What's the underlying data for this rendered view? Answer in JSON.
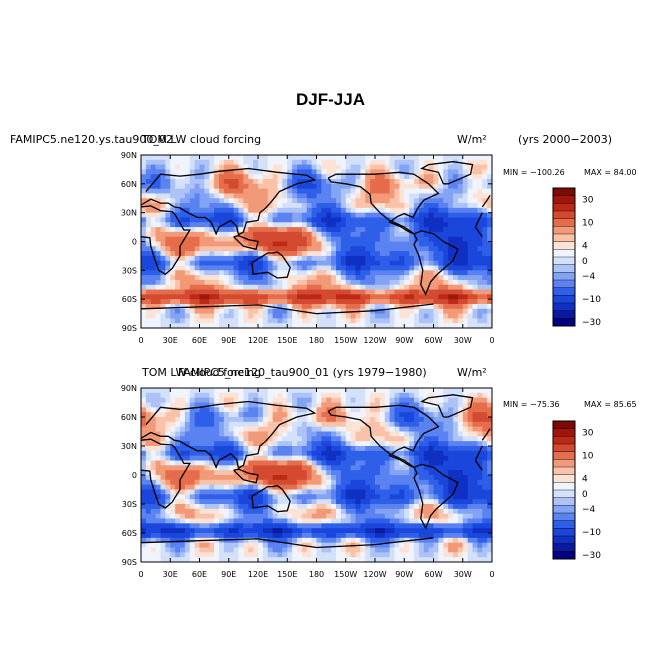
{
  "title": "DJF-JJA",
  "colors": {
    "levels": [
      "#000080",
      "#0a1a9e",
      "#0f30c2",
      "#1a46dc",
      "#2e5fe8",
      "#5a82f0",
      "#83a3f4",
      "#adc3f7",
      "#d4e1fb",
      "#f0f4ff",
      "#fde3d6",
      "#f9c2a9",
      "#f29a78",
      "#e56d4c",
      "#d34a30",
      "#bc2a17",
      "#a1160b",
      "#7d0b05"
    ],
    "land": "#000000"
  },
  "chart_data": [
    {
      "type": "heatmap",
      "left_title": "FAMIPC5.ne120.ys.tau900_02",
      "center_title": "TOM LW cloud forcing",
      "unit": "W/m²",
      "right_title": "(yrs 2000−2003)",
      "min_label": "MIN = −100.26",
      "max_label": "MAX =  84.00",
      "stats": {
        "min": -100.26,
        "max": 84.0
      },
      "x_ticks": [
        "0",
        "30E",
        "60E",
        "90E",
        "120E",
        "150E",
        "180",
        "150W",
        "120W",
        "90W",
        "60W",
        "30W",
        "0"
      ],
      "y_ticks": [
        "90N",
        "60N",
        "30N",
        "0",
        "30S",
        "60S",
        "90S"
      ],
      "colorbar_labels": [
        "30",
        "10",
        "4",
        "0",
        "−4",
        "−10",
        "−30"
      ]
    },
    {
      "type": "heatmap",
      "left_title": "TOM LW cloud forcing",
      "center_title": "FAMIPC5_ne120_tau900_01 (yrs 1979−1980)",
      "unit": "W/m²",
      "right_title": "",
      "min_label": "MIN = −75.36",
      "max_label": "MAX =  85.65",
      "stats": {
        "min": -75.36,
        "max": 85.65
      },
      "x_ticks": [
        "0",
        "30E",
        "60E",
        "90E",
        "120E",
        "150E",
        "180",
        "150W",
        "120W",
        "90W",
        "60W",
        "30W",
        "0"
      ],
      "y_ticks": [
        "90N",
        "60N",
        "30N",
        "0",
        "30S",
        "60S",
        "90S"
      ],
      "colorbar_labels": [
        "30",
        "10",
        "4",
        "0",
        "−4",
        "−10",
        "−30"
      ]
    }
  ]
}
